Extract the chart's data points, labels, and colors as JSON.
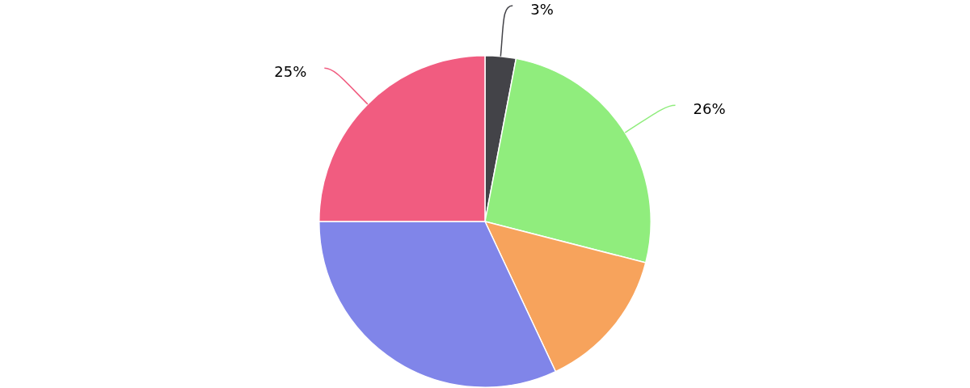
{
  "chart_data": {
    "type": "pie",
    "categories": [
      null,
      null,
      null,
      null,
      null
    ],
    "values": [
      3,
      26,
      14,
      32,
      25
    ],
    "colors": [
      "#434348",
      "#90ed7d",
      "#f7a35c",
      "#8085e9",
      "#f15c80"
    ],
    "value_labels": [
      "3%",
      "26%",
      null,
      null,
      "25%"
    ]
  }
}
